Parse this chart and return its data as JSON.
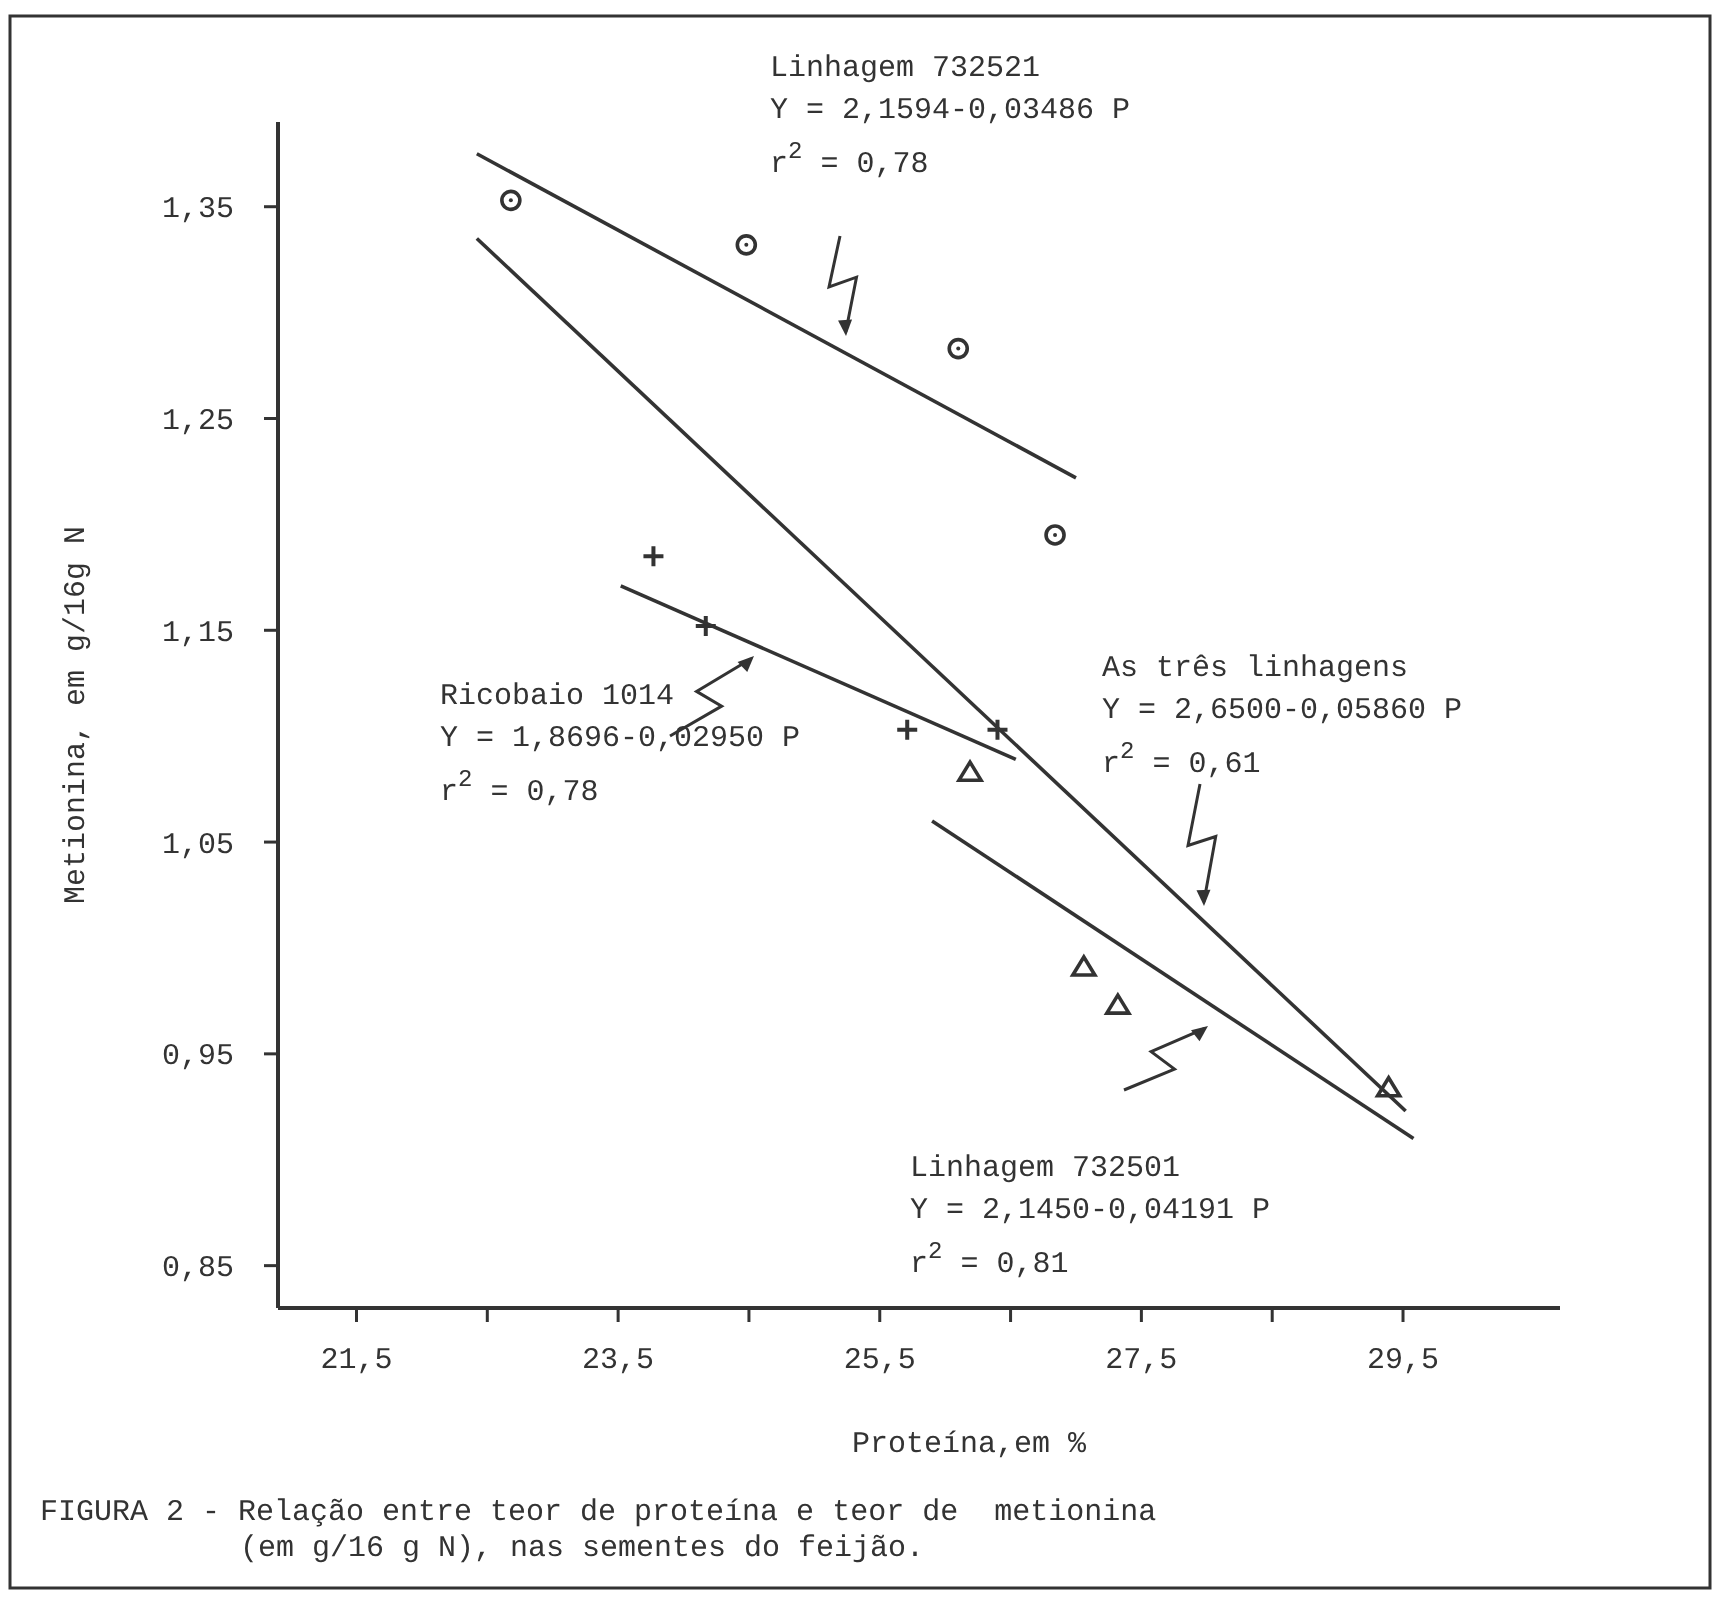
{
  "chart_data": {
    "type": "scatter",
    "xlabel": "Proteína,em %",
    "ylabel": "Metionina, em g/16g N",
    "xlim": [
      20.9,
      30.7
    ],
    "ylim": [
      0.83,
      1.39
    ],
    "xticks": [
      {
        "value": 21.5,
        "label": "21,5"
      },
      {
        "value": 22.5,
        "label": null
      },
      {
        "value": 23.5,
        "label": "23,5"
      },
      {
        "value": 24.5,
        "label": null
      },
      {
        "value": 25.5,
        "label": "25,5"
      },
      {
        "value": 26.5,
        "label": null
      },
      {
        "value": 27.5,
        "label": "27,5"
      },
      {
        "value": 28.5,
        "label": null
      },
      {
        "value": 29.5,
        "label": "29,5"
      }
    ],
    "yticks": [
      {
        "value": 0.85,
        "label": "0,85"
      },
      {
        "value": 0.95,
        "label": "0,95"
      },
      {
        "value": 1.05,
        "label": "1,05"
      },
      {
        "value": 1.15,
        "label": "1,15"
      },
      {
        "value": 1.25,
        "label": "1,25"
      },
      {
        "value": 1.35,
        "label": "1,35"
      }
    ],
    "grid": false,
    "series": [
      {
        "marker": "circle",
        "color": "#333333",
        "x": [
          22.68,
          24.48,
          26.1,
          26.84
        ],
        "values": [
          1.353,
          1.332,
          1.283,
          1.195
        ]
      },
      {
        "marker": "cross",
        "color": "#333333",
        "x": [
          23.77,
          24.17,
          25.71,
          26.4
        ],
        "values": [
          1.185,
          1.152,
          1.103,
          1.103
        ]
      },
      {
        "marker": "triangle",
        "color": "#333333",
        "x": [
          26.19,
          27.06,
          27.32,
          29.39
        ],
        "values": [
          1.083,
          0.991,
          0.973,
          0.934
        ]
      },
      {
        "type": "line",
        "color": "#333333",
        "x": [
          22.42,
          27.0
        ],
        "values": [
          1.375,
          1.222
        ]
      },
      {
        "type": "line",
        "color": "#333333",
        "x": [
          22.42,
          29.52
        ],
        "values": [
          1.335,
          0.923
        ]
      },
      {
        "type": "line",
        "color": "#333333",
        "x": [
          23.52,
          26.54
        ],
        "values": [
          1.171,
          1.089
        ]
      },
      {
        "type": "line",
        "color": "#333333",
        "x": [
          25.9,
          29.58
        ],
        "values": [
          1.06,
          0.91
        ]
      }
    ],
    "annotations": [
      "Linhagem 732521\nY = 2,1594-0,03486 P\nr$^{2}$ = 0,78",
      "Ricobaio 1014\nY = 1,8696-0,02950 P\nr$^{2}$ = 0,78",
      "As três linhagens\nY = 2,6500-0,05860 P\nr$^{2}$ = 0,61",
      "Linhagem 732501\nY = 2,1450-0,04191 P\nr$^{2}$ = 0,81",
      "FIGURA 2 - Relação entre teor de proteína e teor de  metionina\n(em g/16 g N), nas sementes do feijão."
    ]
  }
}
